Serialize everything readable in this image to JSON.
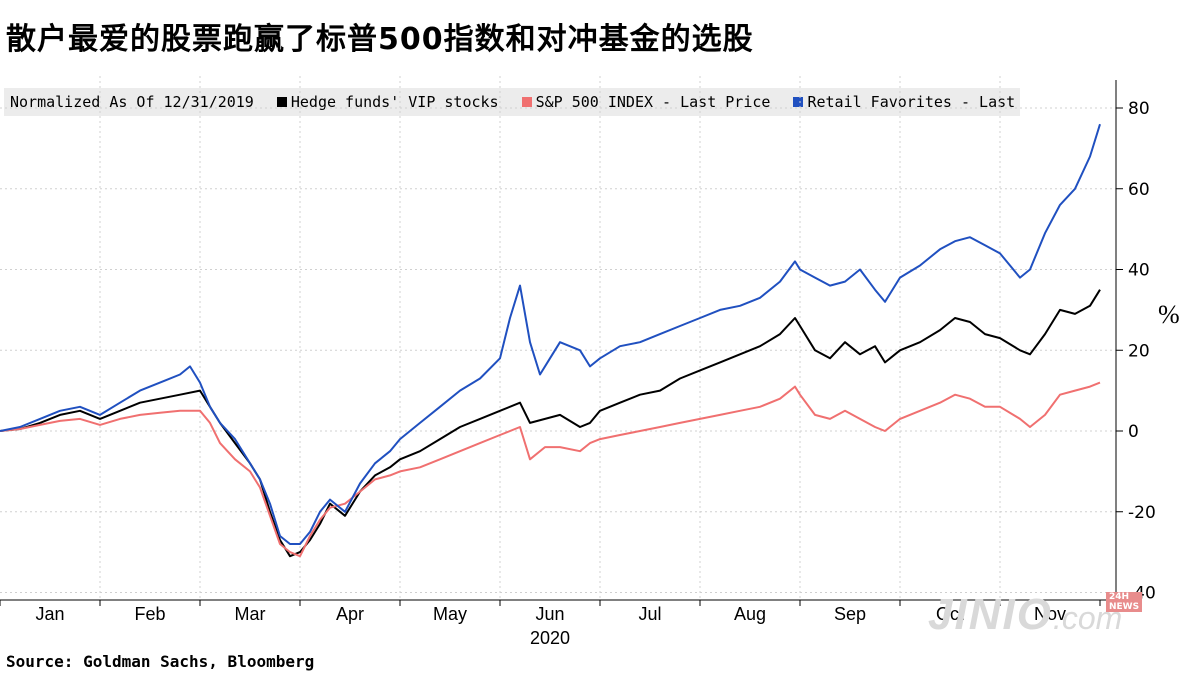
{
  "title": "散户最爱的股票跑赢了标普500指数和对冲基金的选股",
  "source": "Source: Goldman Sachs, Bloomberg",
  "percent_label": "%",
  "watermark": {
    "text": "JINIO",
    "suffix": ".com",
    "badge": "24H NEWS"
  },
  "chart_data": {
    "type": "line",
    "legend_title": "Normalized As Of 12/31/2019",
    "x_labels": [
      "Jan",
      "Feb",
      "Mar",
      "Apr",
      "May",
      "Jun",
      "Jul",
      "Aug",
      "Sep",
      "Oct",
      "Nov"
    ],
    "year_label": "2020",
    "ylim": [
      -40,
      85
    ],
    "yticks": [
      80,
      60,
      40,
      20,
      0,
      -20,
      -40
    ],
    "ytick_labels": [
      "80",
      "60",
      "40",
      "20",
      "0",
      "-20",
      "-40"
    ],
    "grid": true,
    "legend_position": "top",
    "x_range": [
      0,
      11
    ],
    "series": [
      {
        "name": "Hedge funds' VIP stocks",
        "color": "#000000",
        "points": [
          [
            0,
            0
          ],
          [
            0.2,
            0.5
          ],
          [
            0.4,
            2
          ],
          [
            0.6,
            4
          ],
          [
            0.8,
            5
          ],
          [
            1.0,
            3
          ],
          [
            1.2,
            5
          ],
          [
            1.4,
            7
          ],
          [
            1.6,
            8
          ],
          [
            1.8,
            9
          ],
          [
            2.0,
            10
          ],
          [
            2.1,
            6
          ],
          [
            2.2,
            2
          ],
          [
            2.35,
            -3
          ],
          [
            2.5,
            -8
          ],
          [
            2.6,
            -12
          ],
          [
            2.7,
            -20
          ],
          [
            2.8,
            -27
          ],
          [
            2.9,
            -31
          ],
          [
            3.0,
            -30
          ],
          [
            3.1,
            -27
          ],
          [
            3.2,
            -23
          ],
          [
            3.3,
            -18
          ],
          [
            3.45,
            -21
          ],
          [
            3.6,
            -15
          ],
          [
            3.75,
            -11
          ],
          [
            3.9,
            -9
          ],
          [
            4.0,
            -7
          ],
          [
            4.2,
            -5
          ],
          [
            4.4,
            -2
          ],
          [
            4.6,
            1
          ],
          [
            4.8,
            3
          ],
          [
            5.0,
            5
          ],
          [
            5.2,
            7
          ],
          [
            5.3,
            2
          ],
          [
            5.45,
            3
          ],
          [
            5.6,
            4
          ],
          [
            5.8,
            1
          ],
          [
            5.9,
            2
          ],
          [
            6.0,
            5
          ],
          [
            6.2,
            7
          ],
          [
            6.4,
            9
          ],
          [
            6.6,
            10
          ],
          [
            6.8,
            13
          ],
          [
            7.0,
            15
          ],
          [
            7.2,
            17
          ],
          [
            7.4,
            19
          ],
          [
            7.6,
            21
          ],
          [
            7.8,
            24
          ],
          [
            7.95,
            28
          ],
          [
            8.0,
            26
          ],
          [
            8.15,
            20
          ],
          [
            8.3,
            18
          ],
          [
            8.45,
            22
          ],
          [
            8.6,
            19
          ],
          [
            8.75,
            21
          ],
          [
            8.85,
            17
          ],
          [
            9.0,
            20
          ],
          [
            9.2,
            22
          ],
          [
            9.4,
            25
          ],
          [
            9.55,
            28
          ],
          [
            9.7,
            27
          ],
          [
            9.85,
            24
          ],
          [
            10.0,
            23
          ],
          [
            10.2,
            20
          ],
          [
            10.3,
            19
          ],
          [
            10.45,
            24
          ],
          [
            10.6,
            30
          ],
          [
            10.75,
            29
          ],
          [
            10.9,
            31
          ],
          [
            11.0,
            35
          ]
        ]
      },
      {
        "name": "S&P 500 INDEX - Last Price",
        "color": "#f07070",
        "points": [
          [
            0,
            0
          ],
          [
            0.2,
            0.5
          ],
          [
            0.4,
            1.5
          ],
          [
            0.6,
            2.5
          ],
          [
            0.8,
            3
          ],
          [
            1.0,
            1.5
          ],
          [
            1.2,
            3
          ],
          [
            1.4,
            4
          ],
          [
            1.6,
            4.5
          ],
          [
            1.8,
            5
          ],
          [
            2.0,
            5
          ],
          [
            2.1,
            2
          ],
          [
            2.2,
            -3
          ],
          [
            2.35,
            -7
          ],
          [
            2.5,
            -10
          ],
          [
            2.6,
            -14
          ],
          [
            2.7,
            -21
          ],
          [
            2.8,
            -28
          ],
          [
            2.9,
            -30
          ],
          [
            3.0,
            -31
          ],
          [
            3.1,
            -26
          ],
          [
            3.2,
            -22
          ],
          [
            3.3,
            -19
          ],
          [
            3.45,
            -18
          ],
          [
            3.6,
            -15
          ],
          [
            3.75,
            -12
          ],
          [
            3.9,
            -11
          ],
          [
            4.0,
            -10
          ],
          [
            4.2,
            -9
          ],
          [
            4.4,
            -7
          ],
          [
            4.6,
            -5
          ],
          [
            4.8,
            -3
          ],
          [
            5.0,
            -1
          ],
          [
            5.2,
            1
          ],
          [
            5.3,
            -7
          ],
          [
            5.45,
            -4
          ],
          [
            5.6,
            -4
          ],
          [
            5.8,
            -5
          ],
          [
            5.9,
            -3
          ],
          [
            6.0,
            -2
          ],
          [
            6.2,
            -1
          ],
          [
            6.4,
            0
          ],
          [
            6.6,
            1
          ],
          [
            6.8,
            2
          ],
          [
            7.0,
            3
          ],
          [
            7.2,
            4
          ],
          [
            7.4,
            5
          ],
          [
            7.6,
            6
          ],
          [
            7.8,
            8
          ],
          [
            7.95,
            11
          ],
          [
            8.0,
            9
          ],
          [
            8.15,
            4
          ],
          [
            8.3,
            3
          ],
          [
            8.45,
            5
          ],
          [
            8.6,
            3
          ],
          [
            8.75,
            1
          ],
          [
            8.85,
            0
          ],
          [
            9.0,
            3
          ],
          [
            9.2,
            5
          ],
          [
            9.4,
            7
          ],
          [
            9.55,
            9
          ],
          [
            9.7,
            8
          ],
          [
            9.85,
            6
          ],
          [
            10.0,
            6
          ],
          [
            10.2,
            3
          ],
          [
            10.3,
            1
          ],
          [
            10.45,
            4
          ],
          [
            10.6,
            9
          ],
          [
            10.75,
            10
          ],
          [
            10.9,
            11
          ],
          [
            11.0,
            12
          ]
        ]
      },
      {
        "name": "Retail Favorites - Last Price",
        "color": "#2050c0",
        "points": [
          [
            0,
            0
          ],
          [
            0.2,
            1
          ],
          [
            0.4,
            3
          ],
          [
            0.6,
            5
          ],
          [
            0.8,
            6
          ],
          [
            1.0,
            4
          ],
          [
            1.2,
            7
          ],
          [
            1.4,
            10
          ],
          [
            1.6,
            12
          ],
          [
            1.8,
            14
          ],
          [
            1.9,
            16
          ],
          [
            2.0,
            12
          ],
          [
            2.1,
            6
          ],
          [
            2.2,
            2
          ],
          [
            2.35,
            -2
          ],
          [
            2.5,
            -8
          ],
          [
            2.6,
            -12
          ],
          [
            2.7,
            -18
          ],
          [
            2.8,
            -26
          ],
          [
            2.9,
            -28
          ],
          [
            3.0,
            -28
          ],
          [
            3.1,
            -25
          ],
          [
            3.2,
            -20
          ],
          [
            3.3,
            -17
          ],
          [
            3.45,
            -20
          ],
          [
            3.6,
            -13
          ],
          [
            3.75,
            -8
          ],
          [
            3.9,
            -5
          ],
          [
            4.0,
            -2
          ],
          [
            4.2,
            2
          ],
          [
            4.4,
            6
          ],
          [
            4.6,
            10
          ],
          [
            4.8,
            13
          ],
          [
            5.0,
            18
          ],
          [
            5.1,
            28
          ],
          [
            5.2,
            36
          ],
          [
            5.3,
            22
          ],
          [
            5.4,
            14
          ],
          [
            5.5,
            18
          ],
          [
            5.6,
            22
          ],
          [
            5.8,
            20
          ],
          [
            5.9,
            16
          ],
          [
            6.0,
            18
          ],
          [
            6.2,
            21
          ],
          [
            6.4,
            22
          ],
          [
            6.6,
            24
          ],
          [
            6.8,
            26
          ],
          [
            7.0,
            28
          ],
          [
            7.2,
            30
          ],
          [
            7.4,
            31
          ],
          [
            7.6,
            33
          ],
          [
            7.8,
            37
          ],
          [
            7.95,
            42
          ],
          [
            8.0,
            40
          ],
          [
            8.15,
            38
          ],
          [
            8.3,
            36
          ],
          [
            8.45,
            37
          ],
          [
            8.6,
            40
          ],
          [
            8.75,
            35
          ],
          [
            8.85,
            32
          ],
          [
            9.0,
            38
          ],
          [
            9.2,
            41
          ],
          [
            9.4,
            45
          ],
          [
            9.55,
            47
          ],
          [
            9.7,
            48
          ],
          [
            9.85,
            46
          ],
          [
            10.0,
            44
          ],
          [
            10.2,
            38
          ],
          [
            10.3,
            40
          ],
          [
            10.45,
            49
          ],
          [
            10.6,
            56
          ],
          [
            10.75,
            60
          ],
          [
            10.9,
            68
          ],
          [
            11.0,
            76
          ]
        ]
      }
    ]
  }
}
